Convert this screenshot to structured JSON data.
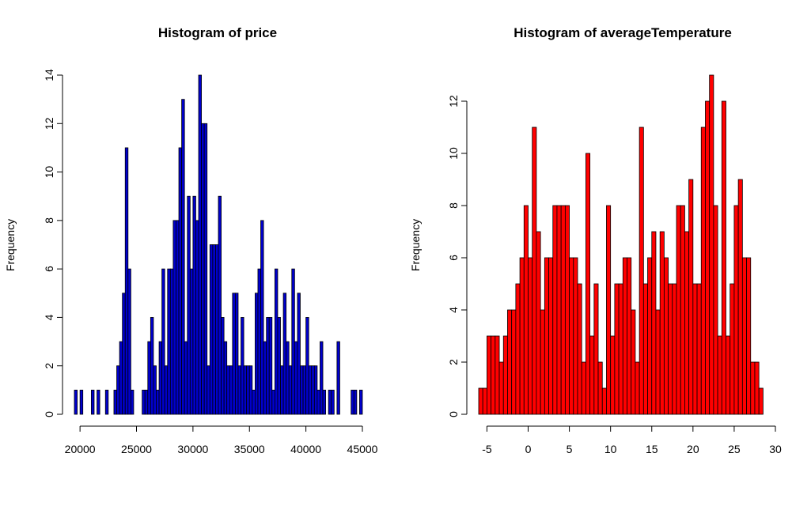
{
  "chart_data": [
    {
      "type": "bar",
      "title": "Histogram of price",
      "xlabel": "",
      "ylabel": "Frequency",
      "color": "#0000cc",
      "bin_width": 250,
      "xlim": [
        19500,
        45000
      ],
      "ylim": [
        0,
        14
      ],
      "x_ticks": [
        20000,
        25000,
        30000,
        35000,
        40000,
        45000
      ],
      "y_ticks": [
        0,
        2,
        4,
        6,
        8,
        10,
        12,
        14
      ],
      "bins": [
        {
          "x": 19500,
          "value": 1
        },
        {
          "x": 20000,
          "value": 1
        },
        {
          "x": 21000,
          "value": 1
        },
        {
          "x": 21500,
          "value": 1
        },
        {
          "x": 22250,
          "value": 1
        },
        {
          "x": 23000,
          "value": 1
        },
        {
          "x": 23250,
          "value": 2
        },
        {
          "x": 23500,
          "value": 3
        },
        {
          "x": 23750,
          "value": 5
        },
        {
          "x": 24000,
          "value": 11
        },
        {
          "x": 24250,
          "value": 6
        },
        {
          "x": 24500,
          "value": 1
        },
        {
          "x": 25500,
          "value": 1
        },
        {
          "x": 25750,
          "value": 1
        },
        {
          "x": 26000,
          "value": 3
        },
        {
          "x": 26250,
          "value": 4
        },
        {
          "x": 26500,
          "value": 2
        },
        {
          "x": 26750,
          "value": 1
        },
        {
          "x": 27000,
          "value": 3
        },
        {
          "x": 27250,
          "value": 6
        },
        {
          "x": 27500,
          "value": 2
        },
        {
          "x": 27750,
          "value": 6
        },
        {
          "x": 28000,
          "value": 6
        },
        {
          "x": 28250,
          "value": 8
        },
        {
          "x": 28500,
          "value": 8
        },
        {
          "x": 28750,
          "value": 11
        },
        {
          "x": 29000,
          "value": 13
        },
        {
          "x": 29250,
          "value": 3
        },
        {
          "x": 29500,
          "value": 9
        },
        {
          "x": 29750,
          "value": 6
        },
        {
          "x": 30000,
          "value": 9
        },
        {
          "x": 30250,
          "value": 8
        },
        {
          "x": 30500,
          "value": 14
        },
        {
          "x": 30750,
          "value": 12
        },
        {
          "x": 31000,
          "value": 12
        },
        {
          "x": 31250,
          "value": 2
        },
        {
          "x": 31500,
          "value": 7
        },
        {
          "x": 31750,
          "value": 7
        },
        {
          "x": 32000,
          "value": 7
        },
        {
          "x": 32250,
          "value": 9
        },
        {
          "x": 32500,
          "value": 4
        },
        {
          "x": 32750,
          "value": 3
        },
        {
          "x": 33000,
          "value": 2
        },
        {
          "x": 33250,
          "value": 2
        },
        {
          "x": 33500,
          "value": 5
        },
        {
          "x": 33750,
          "value": 5
        },
        {
          "x": 34000,
          "value": 2
        },
        {
          "x": 34250,
          "value": 4
        },
        {
          "x": 34500,
          "value": 2
        },
        {
          "x": 34750,
          "value": 2
        },
        {
          "x": 35000,
          "value": 2
        },
        {
          "x": 35250,
          "value": 1
        },
        {
          "x": 35500,
          "value": 5
        },
        {
          "x": 35750,
          "value": 6
        },
        {
          "x": 36000,
          "value": 8
        },
        {
          "x": 36250,
          "value": 3
        },
        {
          "x": 36500,
          "value": 4
        },
        {
          "x": 36750,
          "value": 4
        },
        {
          "x": 37000,
          "value": 1
        },
        {
          "x": 37250,
          "value": 6
        },
        {
          "x": 37500,
          "value": 4
        },
        {
          "x": 37750,
          "value": 2
        },
        {
          "x": 38000,
          "value": 5
        },
        {
          "x": 38250,
          "value": 3
        },
        {
          "x": 38500,
          "value": 2
        },
        {
          "x": 38750,
          "value": 6
        },
        {
          "x": 39000,
          "value": 3
        },
        {
          "x": 39250,
          "value": 5
        },
        {
          "x": 39500,
          "value": 2
        },
        {
          "x": 39750,
          "value": 2
        },
        {
          "x": 40000,
          "value": 4
        },
        {
          "x": 40250,
          "value": 2
        },
        {
          "x": 40500,
          "value": 2
        },
        {
          "x": 40750,
          "value": 2
        },
        {
          "x": 41000,
          "value": 1
        },
        {
          "x": 41250,
          "value": 3
        },
        {
          "x": 41500,
          "value": 1
        },
        {
          "x": 42000,
          "value": 1
        },
        {
          "x": 42250,
          "value": 1
        },
        {
          "x": 42750,
          "value": 3
        },
        {
          "x": 44000,
          "value": 1
        },
        {
          "x": 44250,
          "value": 1
        },
        {
          "x": 44750,
          "value": 1
        }
      ]
    },
    {
      "type": "bar",
      "title": "Histogram of averageTemperature",
      "xlabel": "",
      "ylabel": "Frequency",
      "color": "#ff0000",
      "bin_width": 0.5,
      "xlim": [
        -6,
        30
      ],
      "ylim": [
        0,
        13
      ],
      "x_ticks": [
        -5,
        0,
        5,
        10,
        15,
        20,
        25,
        30
      ],
      "y_ticks": [
        0,
        2,
        4,
        6,
        8,
        10,
        12
      ],
      "bins": [
        {
          "x": -6.0,
          "value": 1
        },
        {
          "x": -5.5,
          "value": 1
        },
        {
          "x": -5.0,
          "value": 3
        },
        {
          "x": -4.5,
          "value": 3
        },
        {
          "x": -4.0,
          "value": 3
        },
        {
          "x": -3.5,
          "value": 2
        },
        {
          "x": -3.0,
          "value": 3
        },
        {
          "x": -2.5,
          "value": 4
        },
        {
          "x": -2.0,
          "value": 4
        },
        {
          "x": -1.5,
          "value": 5
        },
        {
          "x": -1.0,
          "value": 6
        },
        {
          "x": -0.5,
          "value": 8
        },
        {
          "x": 0.0,
          "value": 6
        },
        {
          "x": 0.5,
          "value": 11
        },
        {
          "x": 1.0,
          "value": 7
        },
        {
          "x": 1.5,
          "value": 4
        },
        {
          "x": 2.0,
          "value": 6
        },
        {
          "x": 2.5,
          "value": 6
        },
        {
          "x": 3.0,
          "value": 8
        },
        {
          "x": 3.5,
          "value": 8
        },
        {
          "x": 4.0,
          "value": 8
        },
        {
          "x": 4.5,
          "value": 8
        },
        {
          "x": 5.0,
          "value": 6
        },
        {
          "x": 5.5,
          "value": 6
        },
        {
          "x": 6.0,
          "value": 5
        },
        {
          "x": 6.5,
          "value": 2
        },
        {
          "x": 7.0,
          "value": 10
        },
        {
          "x": 7.5,
          "value": 3
        },
        {
          "x": 8.0,
          "value": 5
        },
        {
          "x": 8.5,
          "value": 2
        },
        {
          "x": 9.0,
          "value": 1
        },
        {
          "x": 9.5,
          "value": 8
        },
        {
          "x": 10.0,
          "value": 3
        },
        {
          "x": 10.5,
          "value": 5
        },
        {
          "x": 11.0,
          "value": 5
        },
        {
          "x": 11.5,
          "value": 6
        },
        {
          "x": 12.0,
          "value": 6
        },
        {
          "x": 12.5,
          "value": 4
        },
        {
          "x": 13.0,
          "value": 2
        },
        {
          "x": 13.5,
          "value": 11
        },
        {
          "x": 14.0,
          "value": 5
        },
        {
          "x": 14.5,
          "value": 6
        },
        {
          "x": 15.0,
          "value": 7
        },
        {
          "x": 15.5,
          "value": 4
        },
        {
          "x": 16.0,
          "value": 7
        },
        {
          "x": 16.5,
          "value": 6
        },
        {
          "x": 17.0,
          "value": 5
        },
        {
          "x": 17.5,
          "value": 5
        },
        {
          "x": 18.0,
          "value": 8
        },
        {
          "x": 18.5,
          "value": 8
        },
        {
          "x": 19.0,
          "value": 7
        },
        {
          "x": 19.5,
          "value": 9
        },
        {
          "x": 20.0,
          "value": 5
        },
        {
          "x": 20.5,
          "value": 5
        },
        {
          "x": 21.0,
          "value": 11
        },
        {
          "x": 21.5,
          "value": 12
        },
        {
          "x": 22.0,
          "value": 13
        },
        {
          "x": 22.5,
          "value": 8
        },
        {
          "x": 23.0,
          "value": 3
        },
        {
          "x": 23.5,
          "value": 12
        },
        {
          "x": 24.0,
          "value": 3
        },
        {
          "x": 24.5,
          "value": 5
        },
        {
          "x": 25.0,
          "value": 8
        },
        {
          "x": 25.5,
          "value": 9
        },
        {
          "x": 26.0,
          "value": 6
        },
        {
          "x": 26.5,
          "value": 6
        },
        {
          "x": 27.0,
          "value": 2
        },
        {
          "x": 27.5,
          "value": 2
        },
        {
          "x": 28.0,
          "value": 1
        }
      ]
    }
  ]
}
